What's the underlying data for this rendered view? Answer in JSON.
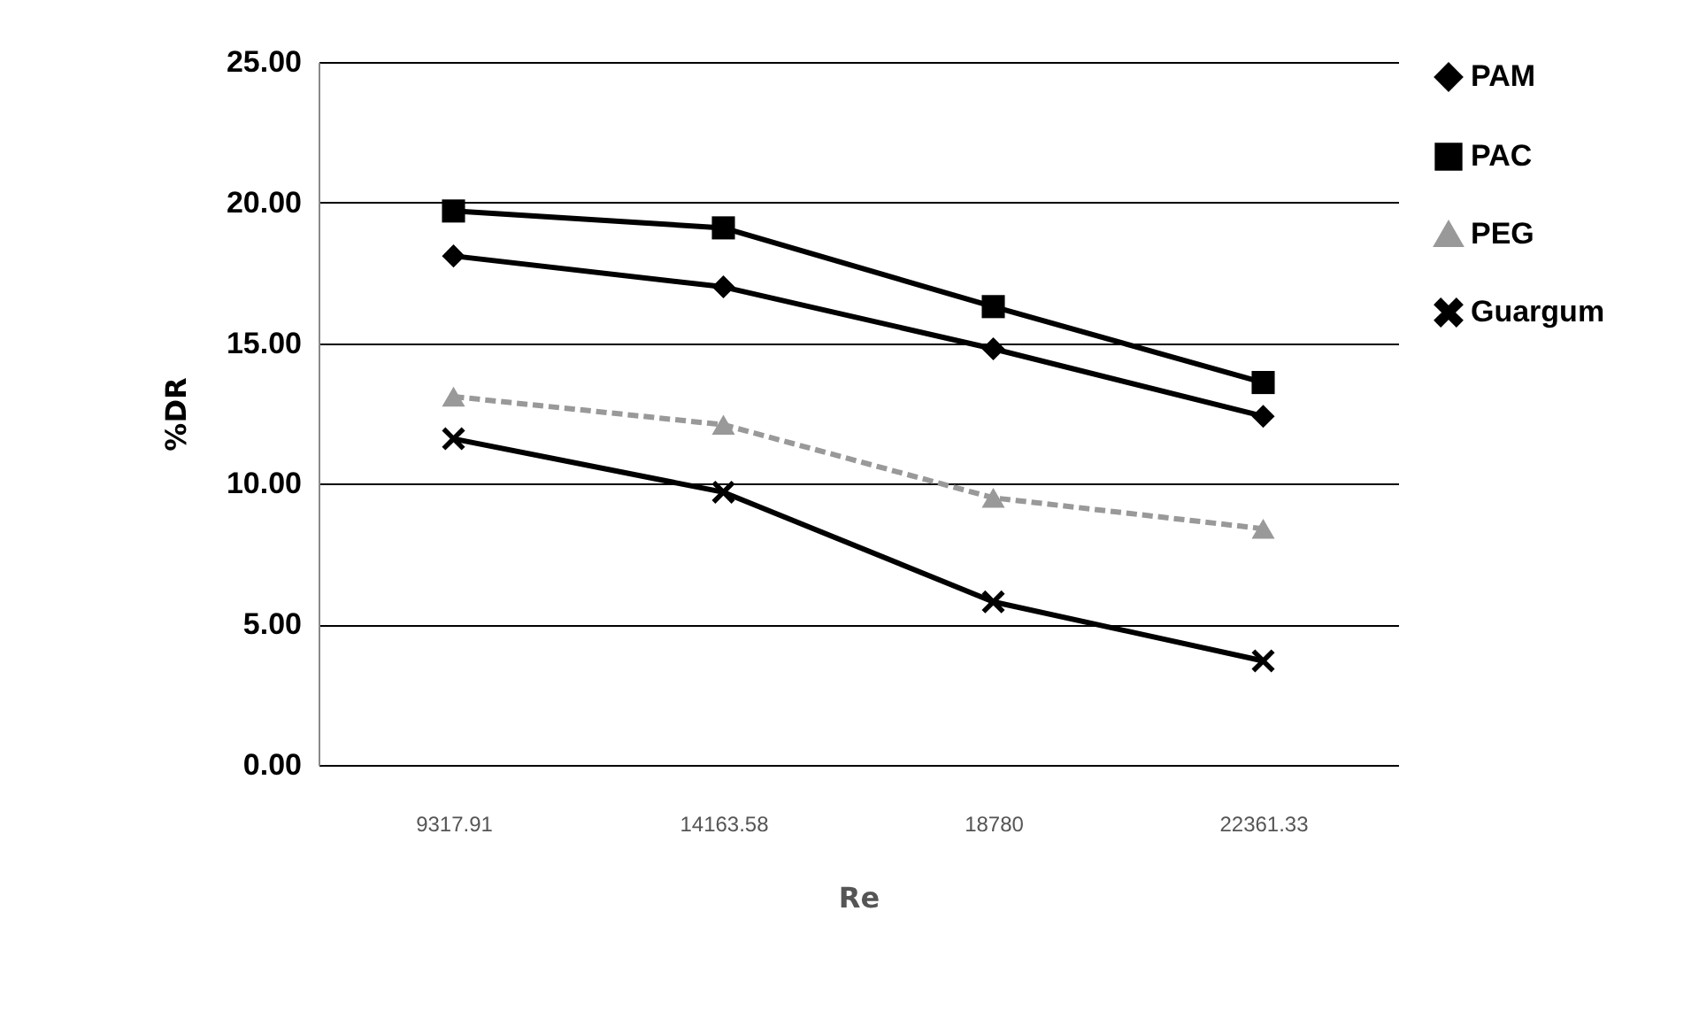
{
  "chart_data": {
    "type": "line",
    "xlabel": "Re",
    "ylabel": "%DR",
    "categories": [
      "9317.91",
      "14163.58",
      "18780",
      "22361.33"
    ],
    "series": [
      {
        "name": "PAM",
        "color": "#000000",
        "marker": "diamond",
        "values": [
          18.1,
          17.0,
          14.8,
          12.4
        ]
      },
      {
        "name": "PAC",
        "color": "#000000",
        "marker": "square",
        "values": [
          19.7,
          19.1,
          16.3,
          13.6
        ]
      },
      {
        "name": "PEG",
        "color": "#999999",
        "marker": "triangle",
        "line_style": "dashed",
        "values": [
          13.1,
          12.1,
          9.5,
          8.4
        ]
      },
      {
        "name": "Guargum",
        "color": "#000000",
        "marker": "cross",
        "values": [
          11.6,
          9.7,
          5.8,
          3.7
        ]
      }
    ],
    "ylim": [
      0,
      25
    ],
    "yticks": [
      {
        "value": 0,
        "label": "0.00"
      },
      {
        "value": 5,
        "label": "5.00"
      },
      {
        "value": 10,
        "label": "10.00"
      },
      {
        "value": 15,
        "label": "15.00"
      },
      {
        "value": 20,
        "label": "20.00"
      },
      {
        "value": 25,
        "label": "25.00"
      }
    ],
    "grid": "y",
    "legend": "right"
  }
}
